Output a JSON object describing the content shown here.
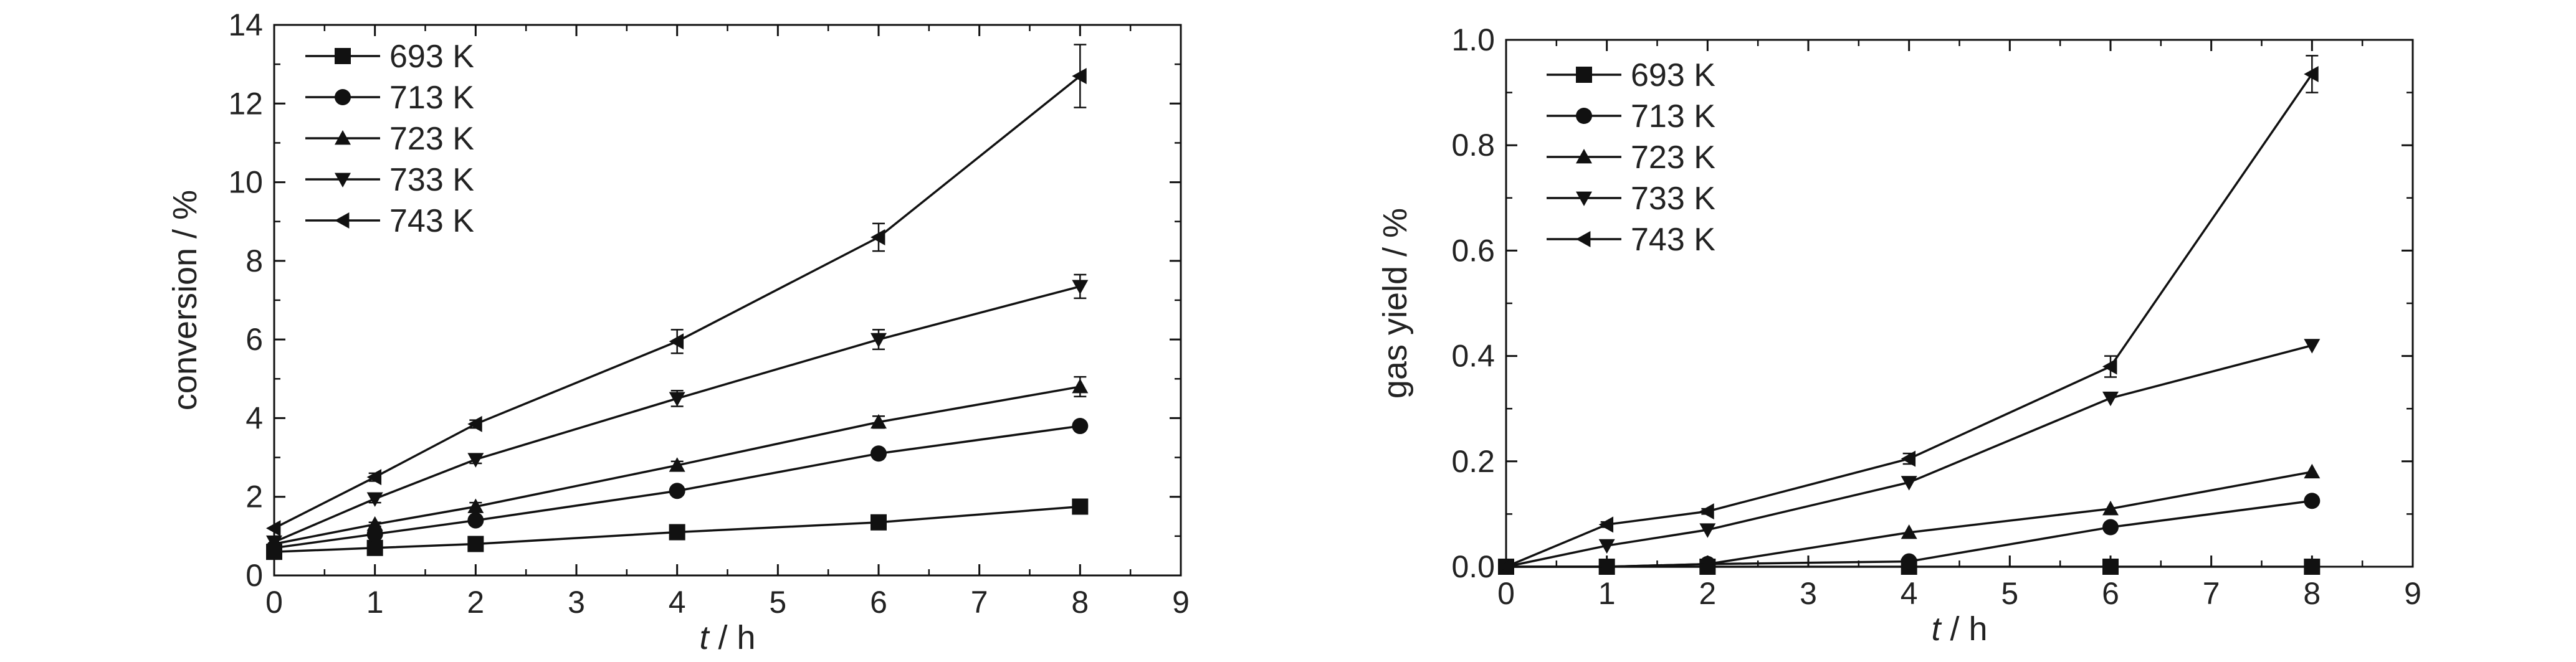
{
  "chart_data": [
    {
      "type": "line",
      "xlabel_italic": "t",
      "xlabel_unit": " / h",
      "ylabel": "conversion / %",
      "xlim": [
        0,
        9
      ],
      "ylim": [
        0,
        14
      ],
      "xticks": [
        "0",
        "1",
        "2",
        "3",
        "4",
        "5",
        "6",
        "7",
        "8",
        "9"
      ],
      "yticks": [
        "0",
        "2",
        "4",
        "6",
        "8",
        "10",
        "12",
        "14"
      ],
      "x": [
        0,
        1,
        2,
        4,
        6,
        8
      ],
      "series": [
        {
          "name": "693 K",
          "marker": "square",
          "values": [
            0.6,
            0.7,
            0.8,
            1.1,
            1.35,
            1.75
          ]
        },
        {
          "name": "713 K",
          "marker": "circle",
          "values": [
            0.7,
            1.05,
            1.4,
            2.15,
            3.1,
            3.8
          ]
        },
        {
          "name": "723 K",
          "marker": "triangle-up",
          "values": [
            0.8,
            1.3,
            1.75,
            2.8,
            3.9,
            4.8
          ]
        },
        {
          "name": "733 K",
          "marker": "triangle-down",
          "values": [
            0.85,
            1.95,
            2.95,
            4.5,
            6.0,
            7.35
          ]
        },
        {
          "name": "743 K",
          "marker": "triangle-left",
          "values": [
            1.2,
            2.5,
            3.85,
            5.95,
            8.6,
            12.7
          ]
        }
      ],
      "error_bars": {
        "743 K": [
          0,
          0.1,
          0.1,
          0.3,
          0.35,
          0.8
        ],
        "733 K": [
          0,
          0.1,
          0.1,
          0.2,
          0.25,
          0.3
        ],
        "723 K": [
          0,
          0.05,
          0.1,
          0.1,
          0.15,
          0.25
        ]
      },
      "legend": "top-left",
      "grid": false
    },
    {
      "type": "line",
      "xlabel_italic": "t",
      "xlabel_unit": " / h",
      "ylabel": "gas yield / %",
      "xlim": [
        0,
        9
      ],
      "ylim": [
        0,
        1.0
      ],
      "xticks": [
        "0",
        "1",
        "2",
        "3",
        "4",
        "5",
        "6",
        "7",
        "8",
        "9"
      ],
      "yticks": [
        "0.0",
        "0.2",
        "0.4",
        "0.6",
        "0.8",
        "1.0"
      ],
      "x": [
        0,
        1,
        2,
        4,
        6,
        8
      ],
      "series": [
        {
          "name": "693 K",
          "marker": "square",
          "values": [
            0.0,
            0.0,
            0.0,
            0.0,
            0.0,
            0.0
          ]
        },
        {
          "name": "713 K",
          "marker": "circle",
          "values": [
            0.0,
            0.0,
            0.005,
            0.01,
            0.075,
            0.125
          ]
        },
        {
          "name": "723 K",
          "marker": "triangle-up",
          "values": [
            0.0,
            0.0,
            0.005,
            0.065,
            0.11,
            0.18
          ]
        },
        {
          "name": "733 K",
          "marker": "triangle-down",
          "values": [
            0.0,
            0.04,
            0.07,
            0.16,
            0.32,
            0.42
          ]
        },
        {
          "name": "743 K",
          "marker": "triangle-left",
          "values": [
            0.0,
            0.08,
            0.105,
            0.205,
            0.38,
            0.935
          ]
        }
      ],
      "error_bars": {
        "743 K": [
          0,
          0.005,
          0.005,
          0.01,
          0.02,
          0.035
        ]
      },
      "legend": "top-left",
      "grid": false
    }
  ]
}
